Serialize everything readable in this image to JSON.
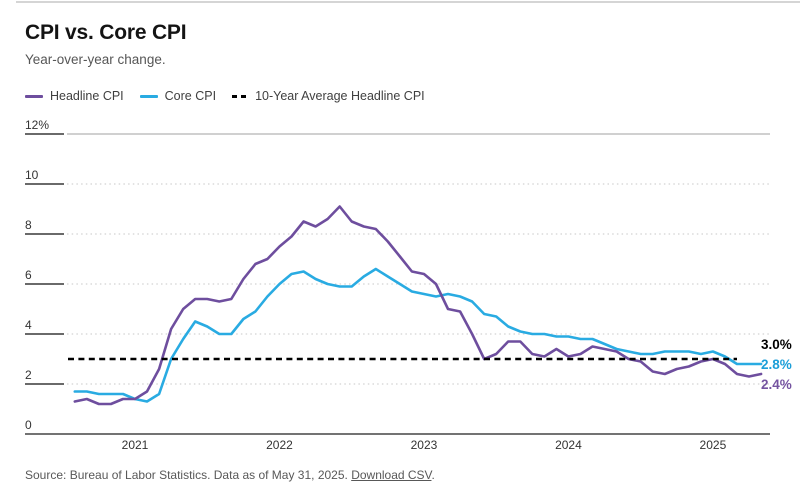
{
  "header": {
    "title": "CPI vs. Core CPI",
    "subtitle": "Year-over-year change."
  },
  "legend": [
    {
      "label": "Headline CPI",
      "color": "#6e4e9e",
      "style": "solid"
    },
    {
      "label": "Core CPI",
      "color": "#29abe2",
      "style": "solid"
    },
    {
      "label": "10-Year Average Headline CPI",
      "color": "#000000",
      "style": "dashed"
    }
  ],
  "footer": {
    "source_text": "Source: Bureau of Labor Statistics. Data as of May 31, 2025. ",
    "link_text": "Download CSV",
    "after_link": "."
  },
  "chart_data": {
    "type": "line",
    "title": "CPI vs. Core CPI",
    "subtitle": "Year-over-year change.",
    "x_start": "2020-08",
    "x_end": "2025-05",
    "x_tick_labels": [
      "2021",
      "2022",
      "2023",
      "2024",
      "2025"
    ],
    "ylim": [
      0,
      12
    ],
    "grid": "dotted-horizontal",
    "legend_position": "top-left",
    "y_ticks": [
      {
        "label": "12%",
        "value": 12
      },
      {
        "label": "10",
        "value": 10
      },
      {
        "label": "8",
        "value": 8
      },
      {
        "label": "6",
        "value": 6
      },
      {
        "label": "4",
        "value": 4
      },
      {
        "label": "2",
        "value": 2
      },
      {
        "label": "0",
        "value": 0
      }
    ],
    "series": [
      {
        "name": "Headline CPI",
        "color": "#6e4e9e",
        "values": [
          1.3,
          1.4,
          1.2,
          1.2,
          1.4,
          1.4,
          1.7,
          2.6,
          4.2,
          5.0,
          5.4,
          5.4,
          5.3,
          5.4,
          6.2,
          6.8,
          7.0,
          7.5,
          7.9,
          8.5,
          8.3,
          8.6,
          9.1,
          8.5,
          8.3,
          8.2,
          7.7,
          7.1,
          6.5,
          6.4,
          6.0,
          5.0,
          4.9,
          4.0,
          3.0,
          3.2,
          3.7,
          3.7,
          3.2,
          3.1,
          3.4,
          3.1,
          3.2,
          3.5,
          3.4,
          3.3,
          3.0,
          2.9,
          2.5,
          2.4,
          2.6,
          2.7,
          2.9,
          3.0,
          2.8,
          2.4,
          2.3,
          2.4
        ]
      },
      {
        "name": "Core CPI",
        "color": "#29abe2",
        "values": [
          1.7,
          1.7,
          1.6,
          1.6,
          1.6,
          1.4,
          1.3,
          1.6,
          3.0,
          3.8,
          4.5,
          4.3,
          4.0,
          4.0,
          4.6,
          4.9,
          5.5,
          6.0,
          6.4,
          6.5,
          6.2,
          6.0,
          5.9,
          5.9,
          6.3,
          6.6,
          6.3,
          6.0,
          5.7,
          5.6,
          5.5,
          5.6,
          5.5,
          5.3,
          4.8,
          4.7,
          4.3,
          4.1,
          4.0,
          4.0,
          3.9,
          3.9,
          3.8,
          3.8,
          3.6,
          3.4,
          3.3,
          3.2,
          3.2,
          3.3,
          3.3,
          3.3,
          3.2,
          3.3,
          3.1,
          2.8,
          2.8,
          2.8
        ]
      }
    ],
    "average_line": {
      "name": "10-Year Average Headline CPI",
      "value": 3.0,
      "color": "#000000",
      "style": "dashed"
    },
    "end_labels": [
      {
        "text": "3.0%",
        "color": "#000000"
      },
      {
        "text": "2.8%",
        "color": "#1b9ed8"
      },
      {
        "text": "2.4%",
        "color": "#7453a0"
      }
    ]
  }
}
